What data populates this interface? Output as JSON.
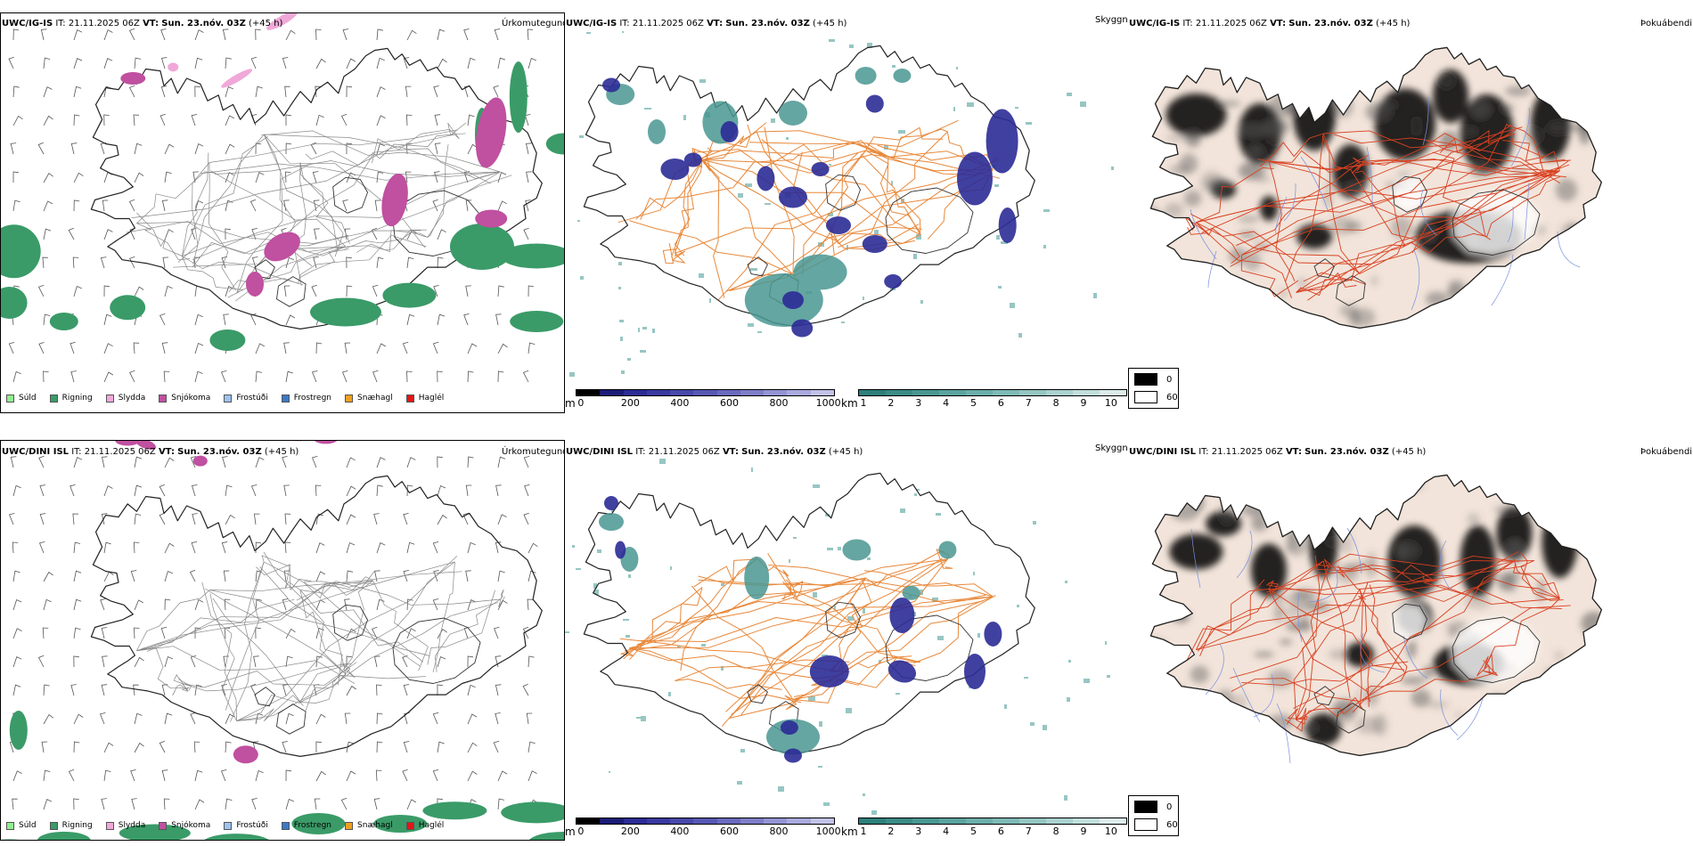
{
  "rows": [
    {
      "model": "UWC/IG-IS",
      "it_label": "IT:",
      "it_value": "21.11.2025 06Z",
      "vt_label": "VT:",
      "vt_value": "Sun. 23.nóv. 03Z",
      "lead": "(+45 h)"
    },
    {
      "model": "UWC/DINI ISL",
      "it_label": "IT:",
      "it_value": "21.11.2025 06Z",
      "vt_label": "VT:",
      "vt_value": "Sun. 23.nóv. 03Z",
      "lead": "(+45 h)"
    }
  ],
  "panel_names": {
    "precip_type": "Úrkomutegund",
    "visibility": "Skyggni",
    "fog_index": "Þokuábendi"
  },
  "precip_legend": [
    {
      "label": "Súld",
      "color": "#90ee90"
    },
    {
      "label": "Rigning",
      "color": "#3a9b68"
    },
    {
      "label": "Slydda",
      "color": "#f0a8d8"
    },
    {
      "label": "Snjókoma",
      "color": "#c050a0"
    },
    {
      "label": "Frostúði",
      "color": "#9ec3f0"
    },
    {
      "label": "Frostregn",
      "color": "#3c78c8"
    },
    {
      "label": "Snæhagl",
      "color": "#f0a020"
    },
    {
      "label": "Haglél",
      "color": "#e01818"
    }
  ],
  "vis_m_bar": {
    "unit": "m",
    "ticks": [
      "0",
      "200",
      "400",
      "600",
      "800",
      "1000"
    ],
    "colors": [
      "#000000",
      "#1c1c78",
      "#2c2c96",
      "#3a3aa0",
      "#4848aa",
      "#5858b4",
      "#6a6abe",
      "#7e7ec8",
      "#9494d4",
      "#aaaade",
      "#c2c2e8"
    ]
  },
  "vis_km_bar": {
    "unit": "km",
    "ticks": [
      "1",
      "2",
      "3",
      "4",
      "5",
      "6",
      "7",
      "8",
      "9",
      "10"
    ],
    "colors": [
      "#2e7f7a",
      "#3c8b86",
      "#4a9792",
      "#5ba39e",
      "#6caeaa",
      "#7fbab6",
      "#94c6c2",
      "#aad2cf",
      "#c2dfdc",
      "#dcedeb"
    ]
  },
  "cloud_key": {
    "low": "0",
    "high": "60",
    "low_color": "#000000",
    "high_color": "#ffffff"
  },
  "colors": {
    "coast": "#222222",
    "roads": "#e8883a",
    "roads_red": "#d84020",
    "rivers": "#7890e0",
    "land_fog": "#f2e4da",
    "snow": "#c050a0",
    "rain": "#3a9b68",
    "sleet": "#f0a8d8",
    "vis_blue": "#2c2c96",
    "vis_teal": "#4a9792"
  }
}
